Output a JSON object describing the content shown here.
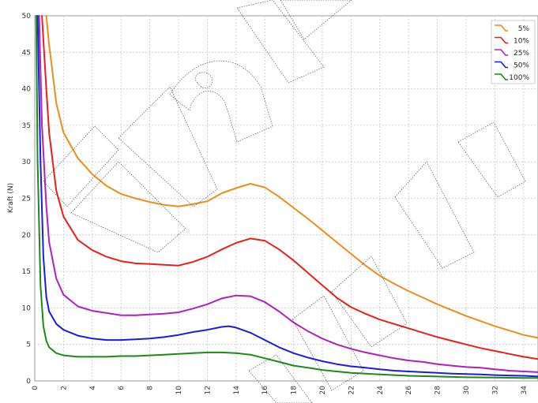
{
  "chart_data": {
    "type": "line",
    "title": "",
    "xlabel": "",
    "ylabel": "Kraft (N)",
    "xlim": [
      0,
      35
    ],
    "ylim": [
      0,
      50
    ],
    "xticks": [
      0,
      2,
      4,
      6,
      8,
      10,
      12,
      14,
      16,
      18,
      20,
      22,
      24,
      26,
      28,
      30,
      32,
      34
    ],
    "yticks": [
      0,
      5,
      10,
      15,
      20,
      25,
      30,
      35,
      40,
      45,
      50
    ],
    "grid": true,
    "legend_position": "top-right",
    "series": [
      {
        "name": "5%",
        "color": "#f08c1e",
        "x": [
          0.8,
          1.0,
          1.5,
          2.0,
          3.0,
          4.0,
          5.0,
          6.0,
          7.0,
          8.0,
          9.0,
          10.0,
          11.0,
          12.0,
          13.0,
          14.0,
          15.0,
          16.0,
          17.0,
          18.0,
          19.0,
          20.0,
          21.0,
          22.0,
          23.0,
          24.0,
          25.0,
          26.0,
          27.0,
          28.0,
          29.0,
          30.0,
          31.0,
          32.0,
          33.0,
          34.0,
          35.0
        ],
        "y": [
          50,
          46,
          38,
          34,
          30.5,
          28.3,
          26.7,
          25.6,
          25.0,
          24.5,
          24.1,
          23.9,
          24.2,
          24.6,
          25.7,
          26.4,
          27.0,
          26.5,
          25.2,
          23.7,
          22.2,
          20.6,
          19.0,
          17.4,
          15.8,
          14.4,
          13.3,
          12.3,
          11.4,
          10.5,
          9.7,
          8.9,
          8.2,
          7.5,
          6.9,
          6.3,
          5.9
        ]
      },
      {
        "name": "10%",
        "color": "#e8201c",
        "x": [
          0.5,
          0.8,
          1.0,
          1.5,
          2.0,
          3.0,
          4.0,
          5.0,
          6.0,
          7.0,
          8.0,
          9.0,
          10.0,
          11.0,
          12.0,
          13.0,
          14.0,
          15.0,
          16.0,
          17.0,
          18.0,
          19.0,
          20.0,
          21.0,
          22.0,
          23.0,
          24.0,
          25.0,
          26.0,
          27.0,
          28.0,
          29.0,
          30.0,
          31.0,
          32.0,
          33.0,
          34.0,
          35.0
        ],
        "y": [
          50,
          40,
          34,
          26,
          22.5,
          19.3,
          17.9,
          17.0,
          16.4,
          16.1,
          16.0,
          15.9,
          15.8,
          16.3,
          17.0,
          18.0,
          18.9,
          19.5,
          19.2,
          18.0,
          16.5,
          14.8,
          13.1,
          11.4,
          10.1,
          9.2,
          8.4,
          7.8,
          7.2,
          6.6,
          6.0,
          5.5,
          5.0,
          4.5,
          4.1,
          3.7,
          3.3,
          3.0
        ]
      },
      {
        "name": "25%",
        "color": "#b020c0",
        "x": [
          0.3,
          0.5,
          0.8,
          1.0,
          1.5,
          2.0,
          3.0,
          4.0,
          5.0,
          6.0,
          7.0,
          8.0,
          9.0,
          10.0,
          11.0,
          12.0,
          13.0,
          14.0,
          15.0,
          16.0,
          17.0,
          18.0,
          19.0,
          20.0,
          21.0,
          22.0,
          23.0,
          24.0,
          25.0,
          26.0,
          27.0,
          28.0,
          29.0,
          30.0,
          31.0,
          32.0,
          33.0,
          34.0,
          35.0
        ],
        "y": [
          50,
          35,
          24,
          19,
          14,
          11.8,
          10.2,
          9.6,
          9.3,
          9.0,
          9.0,
          9.1,
          9.2,
          9.4,
          9.9,
          10.5,
          11.3,
          11.7,
          11.6,
          10.8,
          9.5,
          8.0,
          6.8,
          5.8,
          5.0,
          4.4,
          3.9,
          3.5,
          3.1,
          2.8,
          2.6,
          2.3,
          2.1,
          1.9,
          1.8,
          1.6,
          1.4,
          1.3,
          1.2
        ]
      },
      {
        "name": "50%",
        "color": "#1c1ce0",
        "x": [
          0.2,
          0.4,
          0.6,
          0.8,
          1.0,
          1.5,
          2.0,
          3.0,
          4.0,
          5.0,
          6.0,
          7.0,
          8.0,
          9.0,
          10.0,
          11.0,
          12.0,
          13.0,
          13.5,
          14.0,
          15.0,
          16.0,
          17.0,
          18.0,
          19.0,
          20.0,
          21.0,
          22.0,
          23.0,
          24.0,
          25.0,
          26.0,
          27.0,
          28.0,
          29.0,
          30.0,
          31.0,
          32.0,
          33.0,
          34.0,
          35.0
        ],
        "y": [
          50,
          30,
          17,
          11.5,
          9.5,
          7.8,
          7.0,
          6.2,
          5.8,
          5.6,
          5.6,
          5.7,
          5.8,
          6.0,
          6.3,
          6.7,
          7.0,
          7.4,
          7.5,
          7.3,
          6.6,
          5.6,
          4.6,
          3.8,
          3.2,
          2.7,
          2.3,
          2.0,
          1.8,
          1.6,
          1.4,
          1.3,
          1.2,
          1.1,
          1.0,
          0.95,
          0.9,
          0.8,
          0.75,
          0.7,
          0.6
        ]
      },
      {
        "name": "100%",
        "color": "#1a8a1a",
        "x": [
          0.1,
          0.2,
          0.4,
          0.6,
          0.8,
          1.0,
          1.5,
          2.0,
          3.0,
          4.0,
          5.0,
          6.0,
          7.0,
          8.0,
          9.0,
          10.0,
          11.0,
          12.0,
          13.0,
          14.0,
          15.0,
          16.0,
          17.0,
          18.0,
          19.0,
          20.0,
          21.0,
          22.0,
          24.0,
          26.0,
          28.0,
          30.0,
          32.0,
          34.0,
          35.0
        ],
        "y": [
          50,
          30,
          13,
          7.5,
          5.5,
          4.6,
          3.8,
          3.5,
          3.3,
          3.3,
          3.3,
          3.4,
          3.4,
          3.5,
          3.6,
          3.7,
          3.8,
          3.9,
          3.9,
          3.8,
          3.6,
          3.1,
          2.6,
          2.1,
          1.8,
          1.5,
          1.3,
          1.1,
          0.9,
          0.7,
          0.6,
          0.5,
          0.45,
          0.4,
          0.4
        ]
      }
    ]
  }
}
